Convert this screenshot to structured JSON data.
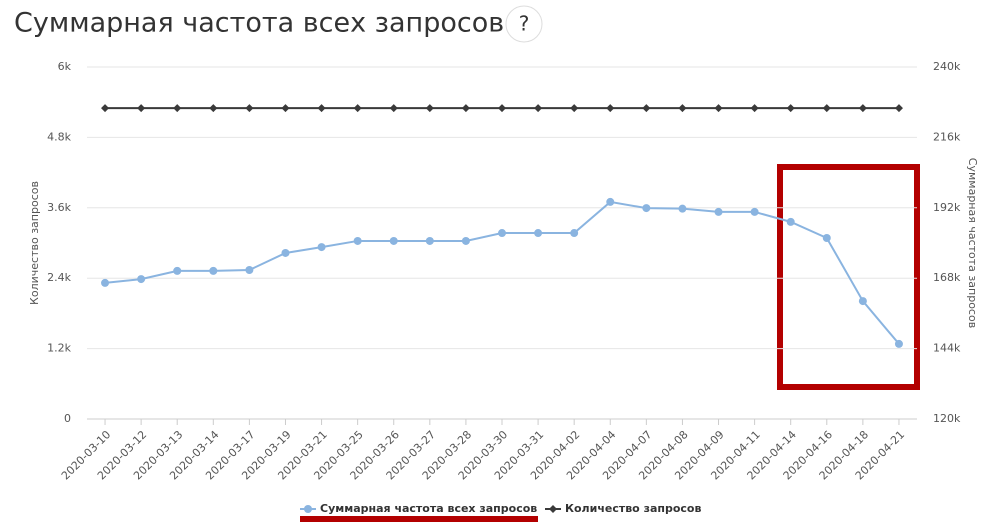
{
  "chart_data": {
    "type": "line",
    "title": "Суммарная частота всех запросов",
    "help": "?",
    "y_label": "Количество запросов",
    "y2_label": "Суммарная частота запросов",
    "categories": [
      "2020-03-10",
      "2020-03-12",
      "2020-03-13",
      "2020-03-14",
      "2020-03-17",
      "2020-03-19",
      "2020-03-21",
      "2020-03-25",
      "2020-03-26",
      "2020-03-27",
      "2020-03-28",
      "2020-03-30",
      "2020-03-31",
      "2020-04-02",
      "2020-04-04",
      "2020-04-07",
      "2020-04-08",
      "2020-04-09",
      "2020-04-11",
      "2020-04-14",
      "2020-04-16",
      "2020-04-18",
      "2020-04-21"
    ],
    "series": [
      {
        "name": "Суммарная частота всех запросов",
        "color": "#8ab4e0",
        "marker": "circle",
        "axis": "y2",
        "values": [
          166400,
          167700,
          170500,
          170500,
          170800,
          176600,
          178600,
          180700,
          180700,
          180700,
          180700,
          183400,
          183400,
          183400,
          194000,
          191900,
          191700,
          190600,
          190600,
          187200,
          181700,
          160200,
          145600
        ]
      },
      {
        "name": "Количество запросов",
        "color": "#3a3a3a",
        "marker": "diamond",
        "values": [
          5300,
          5300,
          5300,
          5300,
          5300,
          5300,
          5300,
          5300,
          5300,
          5300,
          5300,
          5300,
          5300,
          5300,
          5300,
          5300,
          5300,
          5300,
          5300,
          5300,
          5300,
          5300,
          5300
        ]
      }
    ],
    "ylim": [
      0,
      6000
    ],
    "yticks": [
      0,
      {
        "value": 1200,
        "label": "1.2k"
      },
      {
        "value": 2400,
        "label": "2.4k"
      },
      {
        "value": 3600,
        "label": "3.6k"
      },
      {
        "value": 4800,
        "label": "4.8k"
      },
      {
        "value": 6000,
        "label": "6k"
      }
    ],
    "y2lim": [
      120000,
      240000
    ],
    "y2ticks": [
      {
        "value": 120000,
        "label": "120k"
      },
      {
        "value": 144000,
        "label": "144k"
      },
      {
        "value": 168000,
        "label": "168k"
      },
      {
        "value": 192000,
        "label": "192k"
      },
      {
        "value": 216000,
        "label": "216k"
      },
      {
        "value": 240000,
        "label": "240k"
      }
    ],
    "grid": true
  }
}
